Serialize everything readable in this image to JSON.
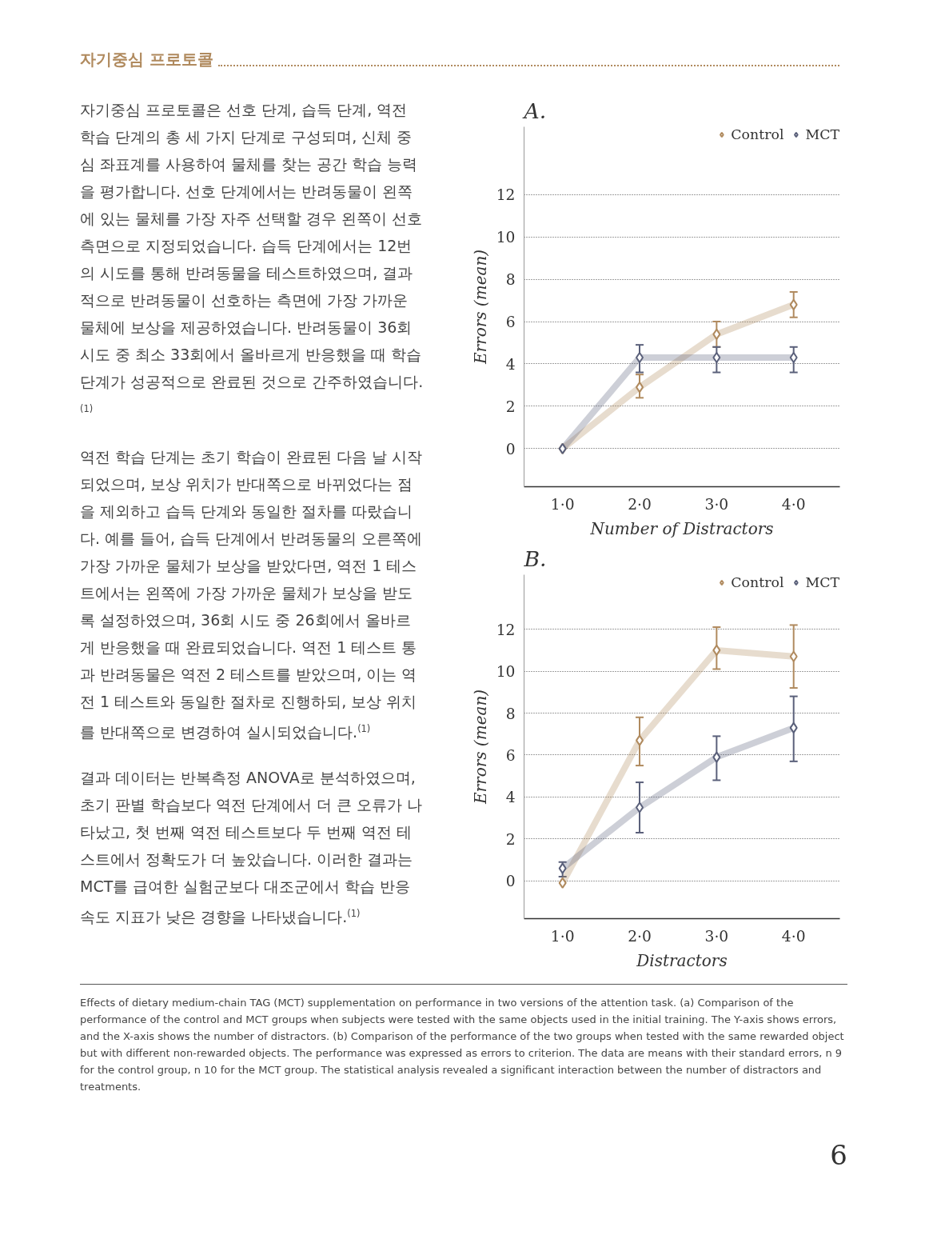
{
  "chart_data": [
    {
      "type": "line",
      "title": "A.",
      "xlabel": "Number of Distractors",
      "ylabel": "Errors (mean)",
      "categories": [
        "1·0",
        "2·0",
        "3·0",
        "4·0"
      ],
      "series": [
        {
          "name": "Control",
          "color": "#b08a5e",
          "values": [
            0,
            2.9,
            5.4,
            6.8
          ],
          "errors": [
            null,
            [
              2.4,
              3.5
            ],
            [
              4.8,
              6.0
            ],
            [
              6.2,
              7.4
            ]
          ]
        },
        {
          "name": "MCT",
          "color": "#5a607a",
          "values": [
            0,
            4.3,
            4.3,
            4.3
          ],
          "errors": [
            null,
            [
              3.6,
              4.9
            ],
            [
              3.6,
              4.8
            ],
            [
              3.6,
              4.8
            ]
          ]
        }
      ],
      "ylim": [
        -1.8,
        15.2
      ],
      "yticks": [
        0,
        2,
        4,
        6,
        8,
        10,
        12
      ],
      "grid": "y",
      "legend": "top right",
      "marker": "diamond",
      "line_style": "solid",
      "annotations": [
        "자기중심 프로토콜",
        "자기중심 프로토콜은 선호 단계, 습득 단계, 역전 학습 단계의 총 세 가지 단계로 구성되며, 신체 중심 좌표계를 사용하여 물체를 찾는 공간 학습 능력을 평가합니다. 선호 단계에서는 반려동물이 왼쪽에 있는 물체를 가장 자주 선택할 경우 왼쪽이 선호 측면으로 지정되었습니다. 습득 단계에서는 12번의 시도를 통해 반려동물을 테스트하였으며, 결과적으로 반려동물이 선호하는 측면에 가장 가까운 물체에 보상을 제공하였습니다. 반려동물이 36회 시도 중 최소 33회에서 올바르게 반응했을 때 학습 단계가 성공적으로 완료된 것으로 간주하였습니다.$^{(1)}$",
        "역전 학습 단계는 초기 학습이 완료된 다음 날 시작되었으며, 보상 위치가 반대쪽으로 바뀌었다는 점을 제외하고 습득 단계와 동일한 절차를 따랐습니다. 예를 들어, 습득 단계에서 반려동물의 오른쪽에 가장 가까운 물체가 보상을 받았다면, 역전 1 테스트에서는 왼쪽에 가장 가까운 물체가 보상을 받도록 설정하였으며, 36회 시도 중 26회에서 올바르게 반응했을 때 완료되었습니다. 역전 1 테스트 통과 반려동물은 역전 2 테스트를 받았으며, 이는 역전 1 테스트와 동일한 절차로 진행하되, 보상 위치를 반대쪽으로 변경하여 실시되었습니다.$^{(1)}$",
        "결과 데이터는 반복측정 ANOVA로 분석하였으며, 초기 판별 학습보다 역전 단계에서 더 큰 오류가 나타났고, 첫 번째 역전 테스트보다 두 번째 역전 테스트에서 정확도가 더 높았습니다. 이러한 결과는 MCT를 급여한 실험군보다 대조군에서 학습 반응 속도 지표가 낮은 경향을 나타냈습니다.$^{(1)}$",
        "Effects of dietary medium-chain TAG (MCT) supplementation on performance in two versions of the attention task. (a) Comparison of the performance of the control and MCT groups when subjects were tested with the same objects used in the initial training. The Y-axis shows errors, and the X-axis shows the number of distractors. (b) Comparison of the performance of the two groups when tested with the same rewarded object but with different non-rewarded objects. The performance was expressed as errors to criterion. The data are means with their standard errors, n 9 for the control group, n 10 for the MCT group. The statistical analysis revealed a significant interaction between the number of distractors and treatments.",
        "6"
      ]
    },
    {
      "type": "line",
      "title": "B.",
      "xlabel": "Distractors",
      "ylabel": "Errors (mean)",
      "categories": [
        "1·0",
        "2·0",
        "3·0",
        "4·0"
      ],
      "series": [
        {
          "name": "Control",
          "color": "#b08a5e",
          "values": [
            -0.1,
            6.7,
            11.0,
            10.7
          ],
          "errors": [
            null,
            [
              5.5,
              7.8
            ],
            [
              10.1,
              12.1
            ],
            [
              9.2,
              12.2
            ]
          ]
        },
        {
          "name": "MCT",
          "color": "#5a607a",
          "values": [
            0.6,
            3.5,
            5.9,
            7.3
          ],
          "errors": [
            [
              0.2,
              0.9
            ],
            [
              2.3,
              4.7
            ],
            [
              4.8,
              6.9
            ],
            [
              5.7,
              8.8
            ]
          ]
        }
      ],
      "ylim": [
        -1.8,
        14.6
      ],
      "yticks": [
        0,
        2,
        4,
        6,
        8,
        10,
        12
      ],
      "grid": "y",
      "legend": "top right",
      "marker": "diamond",
      "line_style": "solid"
    }
  ]
}
